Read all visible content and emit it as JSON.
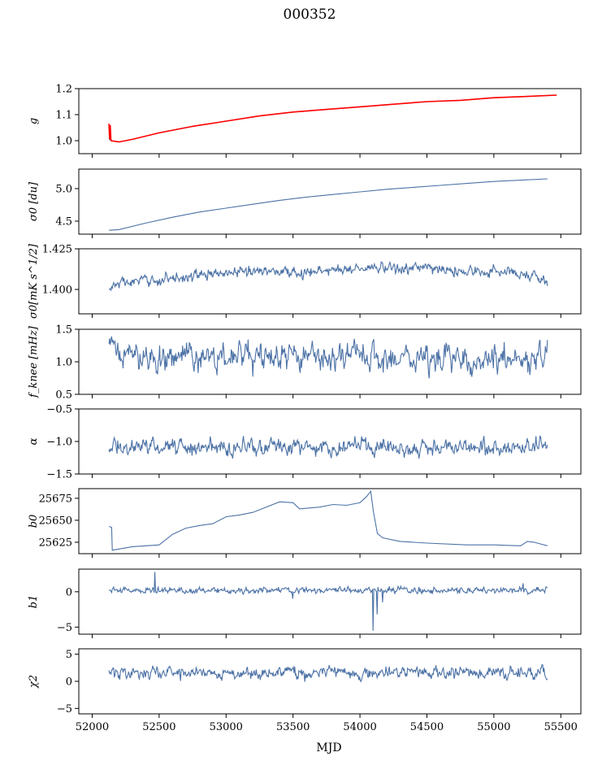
{
  "figure": {
    "title": "000352",
    "xlabel": "MJD"
  },
  "colors": {
    "series": "#4c72a6",
    "fit": "#ff0000",
    "axes": "#000000"
  },
  "chart_data": [
    {
      "type": "line",
      "ylabel": "g",
      "xlim": [
        51900,
        55650
      ],
      "ylim": [
        0.95,
        1.2
      ],
      "yticks": [
        1.0,
        1.1,
        1.2
      ],
      "ytick_labels": [
        "1.0",
        "1.1",
        "1.2"
      ],
      "x_range": [
        52125,
        55400
      ],
      "series": [
        {
          "role": "data",
          "kind": "line",
          "values_x": [
            52125,
            52160,
            52200,
            52300,
            52500,
            52750,
            53000,
            53250,
            53500,
            53750,
            54000,
            54250,
            54500,
            54750,
            55000,
            55250,
            55450
          ],
          "values_y": [
            1.005,
            0.998,
            0.995,
            1.005,
            1.03,
            1.055,
            1.075,
            1.095,
            1.11,
            1.12,
            1.13,
            1.14,
            1.15,
            1.155,
            1.165,
            1.17,
            1.175
          ]
        },
        {
          "role": "fit",
          "kind": "line",
          "values_x": [
            52125,
            52130,
            52135,
            52140,
            52160,
            52200,
            52300,
            52500,
            52750,
            53000,
            53250,
            53500,
            53750,
            54000,
            54250,
            54500,
            54750,
            55000,
            55250,
            55470
          ],
          "values_y": [
            1.065,
            1.005,
            1.06,
            1.0,
            0.998,
            0.995,
            1.005,
            1.03,
            1.055,
            1.075,
            1.095,
            1.11,
            1.12,
            1.13,
            1.14,
            1.15,
            1.155,
            1.165,
            1.17,
            1.175
          ]
        }
      ]
    },
    {
      "type": "line",
      "ylabel": "σ0 [du]",
      "xlim": [
        51900,
        55650
      ],
      "ylim": [
        4.3,
        5.3
      ],
      "yticks": [
        4.5,
        5.0
      ],
      "ytick_labels": [
        "4.5",
        "5.0"
      ],
      "x_range": [
        52125,
        55400
      ],
      "series": [
        {
          "role": "data",
          "kind": "line",
          "values_x": [
            52125,
            52200,
            52400,
            52600,
            52800,
            53000,
            53200,
            53400,
            53600,
            53800,
            54000,
            54200,
            54400,
            54600,
            54800,
            55000,
            55200,
            55400
          ],
          "values_y": [
            4.36,
            4.37,
            4.47,
            4.56,
            4.64,
            4.7,
            4.76,
            4.82,
            4.87,
            4.91,
            4.95,
            4.99,
            5.02,
            5.05,
            5.08,
            5.11,
            5.13,
            5.15
          ]
        }
      ]
    },
    {
      "type": "line",
      "ylabel": "σ0[mK s^1/2]",
      "xlim": [
        51900,
        55650
      ],
      "ylim": [
        1.385,
        1.425
      ],
      "yticks": [
        1.4,
        1.425
      ],
      "ytick_labels": [
        "1.400",
        "1.425"
      ],
      "x_range": [
        52125,
        55400
      ],
      "series": [
        {
          "role": "data",
          "kind": "noise",
          "base_x": [
            52125,
            52200,
            52400,
            52700,
            53000,
            53300,
            53600,
            53900,
            54200,
            54500,
            54800,
            55100,
            55300,
            55400
          ],
          "base_y": [
            1.4,
            1.404,
            1.405,
            1.408,
            1.41,
            1.412,
            1.41,
            1.413,
            1.413,
            1.413,
            1.411,
            1.411,
            1.409,
            1.404
          ],
          "amp": 0.0035,
          "n": 650
        }
      ]
    },
    {
      "type": "line",
      "ylabel": "f_knee [mHz]",
      "xlim": [
        51900,
        55650
      ],
      "ylim": [
        0.5,
        1.5
      ],
      "yticks": [
        0.5,
        1.0,
        1.5
      ],
      "ytick_labels": [
        "0.5",
        "1.0",
        "1.5"
      ],
      "x_range": [
        52125,
        55400
      ],
      "series": [
        {
          "role": "data",
          "kind": "noise",
          "base_x": [
            52125,
            52300,
            55400
          ],
          "base_y": [
            1.2,
            1.08,
            1.05
          ],
          "amp": 0.22,
          "n": 650
        }
      ]
    },
    {
      "type": "line",
      "ylabel": "α",
      "xlim": [
        51900,
        55650
      ],
      "ylim": [
        -1.5,
        -0.5
      ],
      "yticks": [
        -1.5,
        -1.0,
        -0.5
      ],
      "ytick_labels": [
        "−1.5",
        "−1.0",
        "−0.5"
      ],
      "x_range": [
        52125,
        55400
      ],
      "series": [
        {
          "role": "data",
          "kind": "noise",
          "base_x": [
            52125,
            55400
          ],
          "base_y": [
            -1.08,
            -1.08
          ],
          "amp": 0.13,
          "n": 650
        }
      ]
    },
    {
      "type": "line",
      "ylabel": "b0",
      "xlim": [
        51900,
        55650
      ],
      "ylim": [
        25612,
        25686
      ],
      "yticks": [
        25625,
        25650,
        25675
      ],
      "ytick_labels": [
        "25625",
        "25650",
        "25675"
      ],
      "x_range": [
        52125,
        55400
      ],
      "series": [
        {
          "role": "data",
          "kind": "line",
          "values_x": [
            52125,
            52145,
            52150,
            52300,
            52500,
            52600,
            52700,
            52800,
            52900,
            53000,
            53100,
            53200,
            53300,
            53400,
            53500,
            53550,
            53700,
            53800,
            53900,
            54000,
            54050,
            54080,
            54100,
            54130,
            54170,
            54300,
            54500,
            54800,
            55000,
            55200,
            55250,
            55300,
            55400
          ],
          "values_y": [
            25643,
            25642,
            25616,
            25620,
            25622,
            25634,
            25641,
            25644,
            25646,
            25654,
            25656,
            25659,
            25665,
            25671,
            25670,
            25663,
            25665,
            25668,
            25667,
            25670,
            25677,
            25683,
            25660,
            25635,
            25630,
            25626,
            25624,
            25622,
            25622,
            25621,
            25626,
            25625,
            25621
          ]
        }
      ]
    },
    {
      "type": "line",
      "ylabel": "b1",
      "xlim": [
        51900,
        55650
      ],
      "ylim": [
        -6,
        3.2
      ],
      "yticks": [
        -5,
        0
      ],
      "ytick_labels": [
        "−5",
        "0"
      ],
      "x_range": [
        52125,
        55400
      ],
      "series": [
        {
          "role": "data",
          "kind": "noise",
          "base_x": [
            52125,
            55400
          ],
          "base_y": [
            0.2,
            0.2
          ],
          "amp": 0.45,
          "n": 650,
          "spikes": [
            {
              "x": 52470,
              "y": 2.8
            },
            {
              "x": 53500,
              "y": -1.0
            },
            {
              "x": 54100,
              "y": -5.5
            },
            {
              "x": 54130,
              "y": -3.2
            },
            {
              "x": 54170,
              "y": -1.5
            },
            {
              "x": 55220,
              "y": 1.2
            }
          ]
        }
      ]
    },
    {
      "type": "line",
      "ylabel": "χ2",
      "xlim": [
        51900,
        55650
      ],
      "ylim": [
        -6,
        6
      ],
      "yticks": [
        -5,
        0,
        5
      ],
      "ytick_labels": [
        "−5",
        "0",
        "5"
      ],
      "x_range": [
        52125,
        55400
      ],
      "series": [
        {
          "role": "data",
          "kind": "noise",
          "base_x": [
            52125,
            55400
          ],
          "base_y": [
            1.6,
            1.6
          ],
          "amp": 1.2,
          "n": 650
        }
      ]
    }
  ],
  "xaxis": {
    "ticks": [
      52000,
      52500,
      53000,
      53500,
      54000,
      54500,
      55000,
      55500
    ],
    "tick_labels": [
      "52000",
      "52500",
      "53000",
      "53500",
      "54000",
      "54500",
      "55000",
      "55500"
    ]
  }
}
